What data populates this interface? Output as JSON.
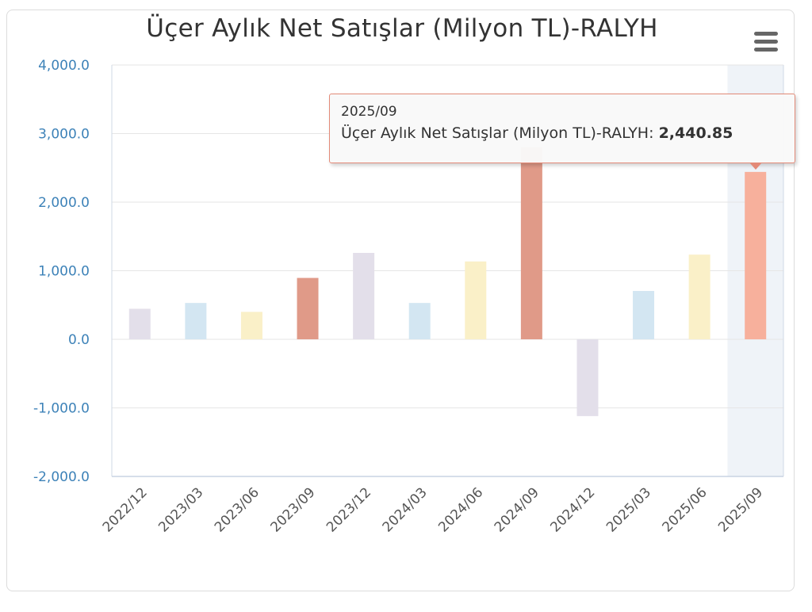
{
  "chart_data": {
    "type": "bar",
    "title": "Üçer Aylık Net Satışlar (Milyon TL)-RALYH",
    "categories": [
      "2022/12",
      "2023/03",
      "2023/06",
      "2023/09",
      "2023/12",
      "2024/03",
      "2024/06",
      "2024/09",
      "2024/12",
      "2025/03",
      "2025/06",
      "2025/09"
    ],
    "values": [
      445,
      530,
      400,
      895,
      1260,
      530,
      1135,
      2800,
      -1120,
      705,
      1235,
      2440.85
    ],
    "colors": [
      "#e3dfea",
      "#d3e6f2",
      "#faf0c8",
      "#e09a88",
      "#e3dfea",
      "#d3e6f2",
      "#faf0c8",
      "#e09a88",
      "#e3dfea",
      "#d3e6f2",
      "#faf0c8",
      "#f7b09c"
    ],
    "ylim": [
      -2000,
      4000
    ],
    "yticks": [
      "-2,000.0",
      "-1,000.0",
      "0.0",
      "1,000.0",
      "2,000.0",
      "3,000.0",
      "4,000.0"
    ],
    "ytick_values": [
      -2000,
      -1000,
      0,
      1000,
      2000,
      3000,
      4000
    ],
    "xlabel": "",
    "ylabel": "",
    "grid": true,
    "legend": "none",
    "highlight_index": 11
  },
  "tooltip": {
    "header": "2025/09",
    "series_label": "Üçer Aylık Net Satışlar (Milyon TL)-RALYH:",
    "value": "2,440.85",
    "border_color": "#e38a78"
  },
  "menu": {
    "icon": "hamburger-menu-icon"
  }
}
